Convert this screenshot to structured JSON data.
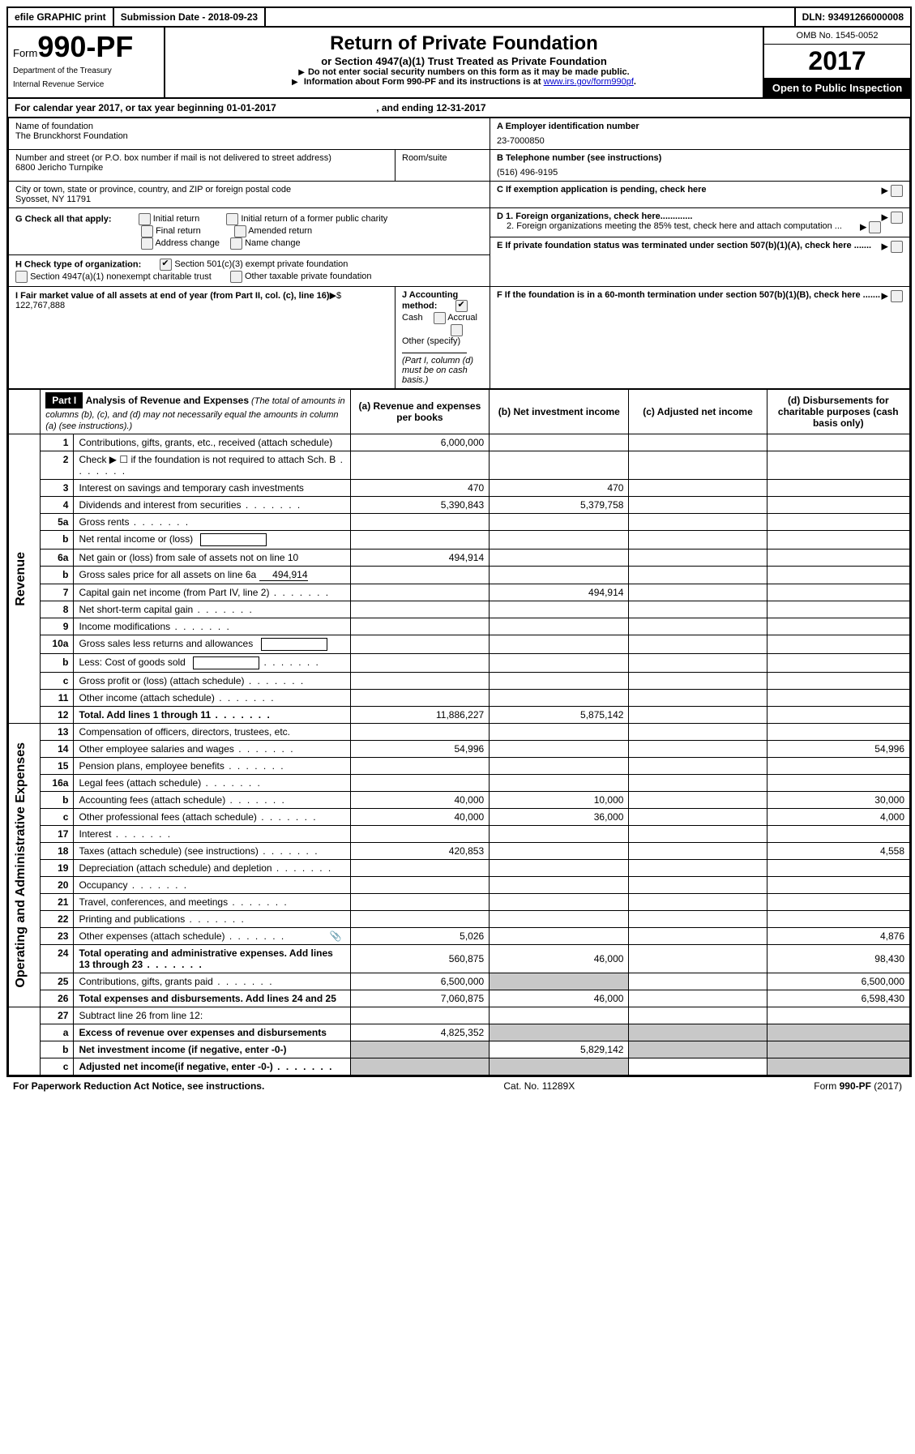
{
  "topbar": {
    "efile": "efile GRAPHIC print",
    "submission_label": "Submission Date - ",
    "submission_date": "2018-09-23",
    "dln_label": "DLN: ",
    "dln": "93491266000008"
  },
  "header": {
    "form_label": "Form",
    "form_number": "990-PF",
    "dept1": "Department of the Treasury",
    "dept2": "Internal Revenue Service",
    "title": "Return of Private Foundation",
    "subtitle": "or Section 4947(a)(1) Trust Treated as Private Foundation",
    "note1": "Do not enter social security numbers on this form as it may be made public.",
    "note2_pre": "Information about Form 990-PF and its instructions is at ",
    "note2_link": "www.irs.gov/form990pf",
    "omb": "OMB No. 1545-0052",
    "year": "2017",
    "open": "Open to Public Inspection"
  },
  "calendar": {
    "pre": "For calendar year 2017, or tax year beginning ",
    "begin": "01-01-2017",
    "mid": " , and ending ",
    "end": "12-31-2017"
  },
  "foundation": {
    "name_label": "Name of foundation",
    "name": "The Brunckhorst Foundation",
    "ein_label": "A Employer identification number",
    "ein": "23-7000850",
    "addr_label": "Number and street (or P.O. box number if mail is not delivered to street address)",
    "room_label": "Room/suite",
    "addr": "6800 Jericho Turnpike",
    "phone_label": "B Telephone number (see instructions)",
    "phone": "(516) 496-9195",
    "city_label": "City or town, state or province, country, and ZIP or foreign postal code",
    "city": "Syosset, NY  11791",
    "c_label": "C If exemption application is pending, check here"
  },
  "checks": {
    "g_label": "G Check all that apply:",
    "g1": "Initial return",
    "g2": "Initial return of a former public charity",
    "g3": "Final return",
    "g4": "Amended return",
    "g5": "Address change",
    "g6": "Name change",
    "d1": "D 1. Foreign organizations, check here.............",
    "d2": "2. Foreign organizations meeting the 85% test, check here and attach computation ...",
    "h_label": "H Check type of organization:",
    "h1": "Section 501(c)(3) exempt private foundation",
    "h2": "Section 4947(a)(1) nonexempt charitable trust",
    "h3": "Other taxable private foundation",
    "e_label": "E  If private foundation status was terminated under section 507(b)(1)(A), check here .......",
    "i_label": "I Fair market value of all assets at end of year (from Part II, col. (c), line 16)",
    "i_val": "$  122,767,888",
    "j_label": "J Accounting method:",
    "j1": "Cash",
    "j2": "Accrual",
    "j3": "Other (specify)",
    "j_note": "(Part I, column (d) must be on cash basis.)",
    "f_label": "F  If the foundation is in a 60-month termination under section 507(b)(1)(B), check here ......."
  },
  "part1": {
    "label": "Part I",
    "title": "Analysis of Revenue and Expenses",
    "title_note": " (The total of amounts in columns (b), (c), and (d) may not necessarily equal the amounts in column (a) (see instructions).)",
    "col_a": "(a)   Revenue and expenses per books",
    "col_b": "(b)  Net investment income",
    "col_c": "(c)  Adjusted net income",
    "col_d": "(d)  Disbursements for charitable purposes (cash basis only)"
  },
  "side": {
    "revenue": "Revenue",
    "expenses": "Operating and Administrative Expenses"
  },
  "rows": [
    {
      "n": "1",
      "d": "Contributions, gifts, grants, etc., received (attach schedule)",
      "a": "6,000,000",
      "b": "",
      "c": "",
      "dd": "",
      "grey_c": false,
      "grey_d": false
    },
    {
      "n": "2",
      "d": "Check ▶ ☐ if the foundation is not required to attach Sch. B",
      "a": "",
      "b": "",
      "c": "",
      "dd": "",
      "dots": true
    },
    {
      "n": "3",
      "d": "Interest on savings and temporary cash investments",
      "a": "470",
      "b": "470",
      "c": "",
      "dd": ""
    },
    {
      "n": "4",
      "d": "Dividends and interest from securities",
      "a": "5,390,843",
      "b": "5,379,758",
      "c": "",
      "dd": "",
      "dots": true
    },
    {
      "n": "5a",
      "d": "Gross rents",
      "a": "",
      "b": "",
      "c": "",
      "dd": "",
      "dots": true
    },
    {
      "n": "b",
      "d": "Net rental income or (loss)",
      "a": "",
      "b": "",
      "c": "",
      "dd": "",
      "boxed": true
    },
    {
      "n": "6a",
      "d": "Net gain or (loss) from sale of assets not on line 10",
      "a": "494,914",
      "b": "",
      "c": "",
      "dd": ""
    },
    {
      "n": "b",
      "d": "Gross sales price for all assets on line 6a",
      "a": "",
      "b": "",
      "c": "",
      "dd": "",
      "inline_val": "494,914"
    },
    {
      "n": "7",
      "d": "Capital gain net income (from Part IV, line 2)",
      "a": "",
      "b": "494,914",
      "c": "",
      "dd": "",
      "dots": true
    },
    {
      "n": "8",
      "d": "Net short-term capital gain",
      "a": "",
      "b": "",
      "c": "",
      "dd": "",
      "dots": true
    },
    {
      "n": "9",
      "d": "Income modifications",
      "a": "",
      "b": "",
      "c": "",
      "dd": "",
      "dots": true
    },
    {
      "n": "10a",
      "d": "Gross sales less returns and allowances",
      "a": "",
      "b": "",
      "c": "",
      "dd": "",
      "boxed": true
    },
    {
      "n": "b",
      "d": "Less: Cost of goods sold",
      "a": "",
      "b": "",
      "c": "",
      "dd": "",
      "boxed": true,
      "dots": true
    },
    {
      "n": "c",
      "d": "Gross profit or (loss) (attach schedule)",
      "a": "",
      "b": "",
      "c": "",
      "dd": "",
      "dots": true
    },
    {
      "n": "11",
      "d": "Other income (attach schedule)",
      "a": "",
      "b": "",
      "c": "",
      "dd": "",
      "dots": true
    },
    {
      "n": "12",
      "d": "Total. Add lines 1 through 11",
      "a": "11,886,227",
      "b": "5,875,142",
      "c": "",
      "dd": "",
      "bold": true,
      "dots": true
    }
  ],
  "exp_rows": [
    {
      "n": "13",
      "d": "Compensation of officers, directors, trustees, etc.",
      "a": "",
      "b": "",
      "c": "",
      "dd": ""
    },
    {
      "n": "14",
      "d": "Other employee salaries and wages",
      "a": "54,996",
      "b": "",
      "c": "",
      "dd": "54,996",
      "dots": true
    },
    {
      "n": "15",
      "d": "Pension plans, employee benefits",
      "a": "",
      "b": "",
      "c": "",
      "dd": "",
      "dots": true
    },
    {
      "n": "16a",
      "d": "Legal fees (attach schedule)",
      "a": "",
      "b": "",
      "c": "",
      "dd": "",
      "dots": true
    },
    {
      "n": "b",
      "d": "Accounting fees (attach schedule)",
      "a": "40,000",
      "b": "10,000",
      "c": "",
      "dd": "30,000",
      "dots": true
    },
    {
      "n": "c",
      "d": "Other professional fees (attach schedule)",
      "a": "40,000",
      "b": "36,000",
      "c": "",
      "dd": "4,000",
      "dots": true
    },
    {
      "n": "17",
      "d": "Interest",
      "a": "",
      "b": "",
      "c": "",
      "dd": "",
      "dots": true
    },
    {
      "n": "18",
      "d": "Taxes (attach schedule) (see instructions)",
      "a": "420,853",
      "b": "",
      "c": "",
      "dd": "4,558",
      "dots": true
    },
    {
      "n": "19",
      "d": "Depreciation (attach schedule) and depletion",
      "a": "",
      "b": "",
      "c": "",
      "dd": "",
      "dots": true
    },
    {
      "n": "20",
      "d": "Occupancy",
      "a": "",
      "b": "",
      "c": "",
      "dd": "",
      "dots": true
    },
    {
      "n": "21",
      "d": "Travel, conferences, and meetings",
      "a": "",
      "b": "",
      "c": "",
      "dd": "",
      "dots": true
    },
    {
      "n": "22",
      "d": "Printing and publications",
      "a": "",
      "b": "",
      "c": "",
      "dd": "",
      "dots": true
    },
    {
      "n": "23",
      "d": "Other expenses (attach schedule)",
      "a": "5,026",
      "b": "",
      "c": "",
      "dd": "4,876",
      "dots": true,
      "icon": true
    },
    {
      "n": "24",
      "d": "Total operating and administrative expenses. Add lines 13 through 23",
      "a": "560,875",
      "b": "46,000",
      "c": "",
      "dd": "98,430",
      "bold": true,
      "dots": true
    },
    {
      "n": "25",
      "d": "Contributions, gifts, grants paid",
      "a": "6,500,000",
      "b": "",
      "c": "",
      "dd": "6,500,000",
      "grey_b": true,
      "dots": true
    },
    {
      "n": "26",
      "d": "Total expenses and disbursements. Add lines 24 and 25",
      "a": "7,060,875",
      "b": "46,000",
      "c": "",
      "dd": "6,598,430",
      "bold": true
    }
  ],
  "final_rows": [
    {
      "n": "27",
      "d": "Subtract line 26 from line 12:",
      "a": "",
      "b": "",
      "c": "",
      "dd": ""
    },
    {
      "n": "a",
      "d": "Excess of revenue over expenses and disbursements",
      "a": "4,825,352",
      "b": "",
      "c": "",
      "dd": "",
      "bold": true,
      "grey_b": true,
      "grey_c": true,
      "grey_d": true
    },
    {
      "n": "b",
      "d": "Net investment income (if negative, enter -0-)",
      "a": "",
      "b": "5,829,142",
      "c": "",
      "dd": "",
      "bold": true,
      "grey_a": true,
      "grey_c": true,
      "grey_d": true
    },
    {
      "n": "c",
      "d": "Adjusted net income(if negative, enter -0-)",
      "a": "",
      "b": "",
      "c": "",
      "dd": "",
      "bold": true,
      "grey_a": true,
      "grey_b": true,
      "grey_d": true,
      "dots": true
    }
  ],
  "footer": {
    "left": "For Paperwork Reduction Act Notice, see instructions.",
    "mid": "Cat. No. 11289X",
    "right": "Form 990-PF (2017)"
  }
}
